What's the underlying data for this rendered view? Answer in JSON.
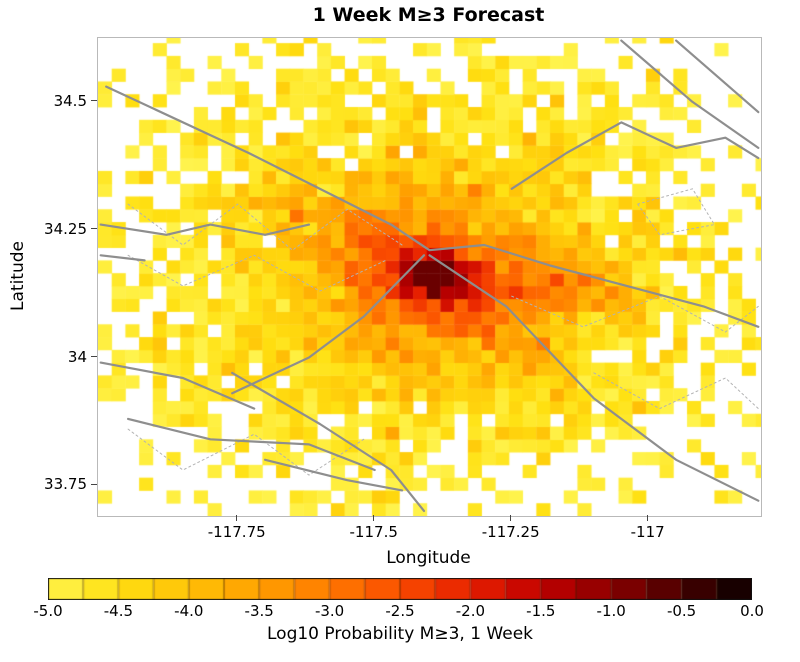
{
  "chart_data": {
    "type": "heatmap",
    "title": "1 Week M≥3 Forecast",
    "xlabel": "Longitude",
    "ylabel": "Latitude",
    "xlim": [
      -118.005,
      -116.795
    ],
    "ylim": [
      33.69,
      34.625
    ],
    "x_ticks": [
      {
        "value": -117.75,
        "label": "-117.75"
      },
      {
        "value": -117.5,
        "label": "-117.5"
      },
      {
        "value": -117.25,
        "label": "-117.25"
      },
      {
        "value": -117.0,
        "label": "-117"
      }
    ],
    "y_ticks": [
      {
        "value": 34.5,
        "label": "34.5"
      },
      {
        "value": 34.25,
        "label": "34.25"
      },
      {
        "value": 34.0,
        "label": "34"
      },
      {
        "value": 33.75,
        "label": "33.75"
      }
    ],
    "grid": false,
    "legend": "colorbar-bottom",
    "value_units": "log10 probability of M>=3 event in 1 week",
    "value_range": [
      -5,
      0
    ],
    "cell_size_deg": 0.025,
    "seed": 20240107,
    "hotspot": {
      "lon": -117.4,
      "lat": 34.16,
      "peak_log10_prob": -0.75
    },
    "decay": {
      "model": "log10(p) = a + b*log10(r_deg) + ridge_boosts + N(0,noise_sd); cells below -5 are blank",
      "a": -5.72,
      "b": -2.78,
      "noise_sd": 0.35,
      "anisotropy_lat": 1.35,
      "clamp_max": -0.75,
      "min_r": 0.01
    },
    "ridges": [
      {
        "x1": -117.42,
        "y1": 34.17,
        "x2": -117.06,
        "y2": 34.12,
        "width": 0.035,
        "amp": 0.8
      },
      {
        "x1": -117.4,
        "y1": 34.18,
        "x2": -117.7,
        "y2": 34.3,
        "width": 0.03,
        "amp": 0.55
      },
      {
        "x1": -117.38,
        "y1": 34.13,
        "x2": -117.16,
        "y2": 33.96,
        "width": 0.03,
        "amp": 0.45
      }
    ],
    "colormap": [
      {
        "v": -5.0,
        "c": "#FFF34D"
      },
      {
        "v": -4.5,
        "c": "#FFE011"
      },
      {
        "v": -4.0,
        "c": "#FFC107"
      },
      {
        "v": -3.5,
        "c": "#FFA000"
      },
      {
        "v": -3.0,
        "c": "#FF7A00"
      },
      {
        "v": -2.5,
        "c": "#FA4D00"
      },
      {
        "v": -2.0,
        "c": "#E62000"
      },
      {
        "v": -1.5,
        "c": "#C00000"
      },
      {
        "v": -1.0,
        "c": "#8B0000"
      },
      {
        "v": -0.5,
        "c": "#480000"
      },
      {
        "v": 0.0,
        "c": "#080000"
      }
    ],
    "colorbar": {
      "label": "Log10 Probability M≥3, 1 Week",
      "segment_step": 0.25,
      "ticks": [
        {
          "value": -5.0,
          "label": "-5.0"
        },
        {
          "value": -4.5,
          "label": "-4.5"
        },
        {
          "value": -4.0,
          "label": "-4.0"
        },
        {
          "value": -3.5,
          "label": "-3.5"
        },
        {
          "value": -3.0,
          "label": "-3.0"
        },
        {
          "value": -2.5,
          "label": "-2.5"
        },
        {
          "value": -2.0,
          "label": "-2.0"
        },
        {
          "value": -1.5,
          "label": "-1.5"
        },
        {
          "value": -1.0,
          "label": "-1.0"
        },
        {
          "value": -0.5,
          "label": "-0.5"
        },
        {
          "value": 0.0,
          "label": "0.0"
        }
      ]
    },
    "faults": [
      {
        "points": [
          [
            -117.99,
            34.53
          ],
          [
            -117.73,
            34.4
          ],
          [
            -117.47,
            34.26
          ],
          [
            -117.4,
            34.21
          ],
          [
            -117.3,
            34.22
          ],
          [
            -117.18,
            34.18
          ],
          [
            -116.9,
            34.1
          ],
          [
            -116.8,
            34.06
          ]
        ]
      },
      {
        "points": [
          [
            -117.4,
            34.2
          ],
          [
            -117.26,
            34.1
          ],
          [
            -117.1,
            33.92
          ],
          [
            -116.95,
            33.8
          ],
          [
            -116.8,
            33.72
          ]
        ]
      },
      {
        "points": [
          [
            -117.41,
            34.2
          ],
          [
            -117.52,
            34.08
          ],
          [
            -117.62,
            34.0
          ],
          [
            -117.76,
            33.93
          ]
        ]
      },
      {
        "points": [
          [
            -117.25,
            34.33
          ],
          [
            -117.15,
            34.4
          ],
          [
            -117.05,
            34.46
          ],
          [
            -116.95,
            34.41
          ],
          [
            -116.86,
            34.43
          ],
          [
            -116.8,
            34.39
          ]
        ]
      },
      {
        "points": [
          [
            -117.05,
            34.62
          ],
          [
            -116.92,
            34.5
          ],
          [
            -116.8,
            34.41
          ]
        ]
      },
      {
        "points": [
          [
            -116.95,
            34.62
          ],
          [
            -116.8,
            34.48
          ]
        ]
      },
      {
        "points": [
          [
            -118.0,
            34.26
          ],
          [
            -117.88,
            34.24
          ],
          [
            -117.8,
            34.26
          ],
          [
            -117.7,
            34.24
          ],
          [
            -117.62,
            34.26
          ]
        ]
      },
      {
        "points": [
          [
            -118.0,
            34.2
          ],
          [
            -117.92,
            34.19
          ]
        ]
      },
      {
        "points": [
          [
            -118.0,
            33.99
          ],
          [
            -117.85,
            33.96
          ],
          [
            -117.72,
            33.9
          ]
        ]
      },
      {
        "points": [
          [
            -117.95,
            33.88
          ],
          [
            -117.8,
            33.84
          ],
          [
            -117.62,
            33.83
          ],
          [
            -117.5,
            33.78
          ]
        ]
      },
      {
        "points": [
          [
            -117.76,
            33.97
          ],
          [
            -117.6,
            33.87
          ],
          [
            -117.47,
            33.78
          ],
          [
            -117.41,
            33.7
          ]
        ]
      },
      {
        "points": [
          [
            -117.7,
            33.8
          ],
          [
            -117.55,
            33.76
          ],
          [
            -117.45,
            33.74
          ]
        ]
      }
    ],
    "fault_sections_dotted": [
      {
        "points": [
          [
            -117.95,
            34.3
          ],
          [
            -117.85,
            34.22
          ],
          [
            -117.75,
            34.3
          ],
          [
            -117.65,
            34.21
          ],
          [
            -117.55,
            34.29
          ],
          [
            -117.45,
            34.22
          ]
        ]
      },
      {
        "points": [
          [
            -117.95,
            34.2
          ],
          [
            -117.85,
            34.14
          ],
          [
            -117.72,
            34.2
          ],
          [
            -117.6,
            34.13
          ],
          [
            -117.48,
            34.19
          ]
        ]
      },
      {
        "points": [
          [
            -117.25,
            34.12
          ],
          [
            -117.12,
            34.06
          ],
          [
            -116.98,
            34.12
          ],
          [
            -116.86,
            34.05
          ],
          [
            -116.8,
            34.1
          ]
        ]
      },
      {
        "points": [
          [
            -117.95,
            33.86
          ],
          [
            -117.85,
            33.78
          ],
          [
            -117.72,
            33.85
          ],
          [
            -117.62,
            33.77
          ],
          [
            -117.52,
            33.84
          ]
        ]
      },
      {
        "points": [
          [
            -117.02,
            34.3
          ],
          [
            -116.92,
            34.33
          ],
          [
            -116.88,
            34.26
          ],
          [
            -116.98,
            34.24
          ],
          [
            -117.02,
            34.3
          ]
        ]
      },
      {
        "points": [
          [
            -117.1,
            33.97
          ],
          [
            -116.98,
            33.9
          ],
          [
            -116.86,
            33.96
          ],
          [
            -116.8,
            33.9
          ]
        ]
      }
    ]
  }
}
